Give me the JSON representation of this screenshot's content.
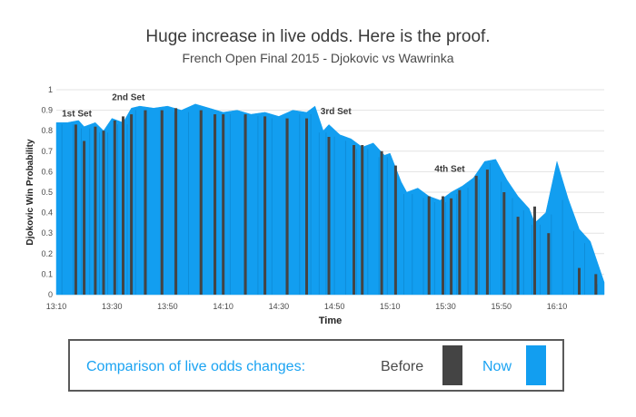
{
  "header": {
    "title": "Huge increase in live odds. Here is the proof.",
    "subtitle": "French Open Final 2015 - Djokovic vs Wawrinka"
  },
  "legend": {
    "title": "Comparison of live odds changes:",
    "before_label": "Before",
    "now_label": "Now"
  },
  "colors": {
    "now": "#129ef0",
    "before": "#444444",
    "grid": "#e3e3e3",
    "text": "#4a4a4a"
  },
  "chart_data": {
    "type": "area",
    "title": "Huge increase in live odds. Here is the proof.",
    "subtitle": "French Open Final 2015 - Djokovic vs Wawrinka",
    "xlabel": "Time",
    "ylabel": "Djokovic Win Probability",
    "ylim": [
      0,
      1
    ],
    "yticks": [
      "0",
      "0.1",
      "0.2",
      "0.3",
      "0.4",
      "0.5",
      "0.6",
      "0.7",
      "0.8",
      "0.9",
      "1"
    ],
    "xrange": [
      "13:10",
      "16:27"
    ],
    "xticks": [
      "13:10",
      "13:30",
      "13:50",
      "14:10",
      "14:30",
      "14:50",
      "15:10",
      "15:30",
      "15:50",
      "16:10"
    ],
    "grid": true,
    "annotations": [
      {
        "text": "1st Set",
        "time": "13:12",
        "value": 0.87
      },
      {
        "text": "2nd Set",
        "time": "13:30",
        "value": 0.95
      },
      {
        "text": "3rd Set",
        "time": "14:45",
        "value": 0.88
      },
      {
        "text": "4th Set",
        "time": "15:26",
        "value": 0.6
      }
    ],
    "series": [
      {
        "name": "Now",
        "times": [
          "13:10",
          "13:14",
          "13:18",
          "13:20",
          "13:24",
          "13:27",
          "13:30",
          "13:34",
          "13:37",
          "13:40",
          "13:45",
          "13:50",
          "13:55",
          "14:00",
          "14:05",
          "14:10",
          "14:15",
          "14:20",
          "14:25",
          "14:30",
          "14:35",
          "14:40",
          "14:43",
          "14:46",
          "14:48",
          "14:52",
          "14:56",
          "15:00",
          "15:04",
          "15:08",
          "15:10",
          "15:14",
          "15:16",
          "15:20",
          "15:24",
          "15:28",
          "15:32",
          "15:36",
          "15:40",
          "15:44",
          "15:48",
          "15:52",
          "15:56",
          "16:00",
          "16:02",
          "16:06",
          "16:10",
          "16:14",
          "16:18",
          "16:22",
          "16:27"
        ],
        "values": [
          0.84,
          0.84,
          0.85,
          0.82,
          0.84,
          0.8,
          0.86,
          0.84,
          0.91,
          0.92,
          0.91,
          0.92,
          0.9,
          0.93,
          0.91,
          0.89,
          0.9,
          0.88,
          0.89,
          0.87,
          0.9,
          0.89,
          0.92,
          0.8,
          0.83,
          0.78,
          0.76,
          0.72,
          0.74,
          0.68,
          0.69,
          0.55,
          0.5,
          0.52,
          0.48,
          0.46,
          0.5,
          0.53,
          0.57,
          0.65,
          0.66,
          0.56,
          0.48,
          0.42,
          0.35,
          0.4,
          0.65,
          0.47,
          0.32,
          0.26,
          0.06
        ]
      },
      {
        "name": "Before",
        "bars": [
          {
            "time": "13:17",
            "value": 0.83
          },
          {
            "time": "13:20",
            "value": 0.75
          },
          {
            "time": "13:24",
            "value": 0.82
          },
          {
            "time": "13:27",
            "value": 0.8
          },
          {
            "time": "13:31",
            "value": 0.85
          },
          {
            "time": "13:34",
            "value": 0.87
          },
          {
            "time": "13:37",
            "value": 0.88
          },
          {
            "time": "13:42",
            "value": 0.9
          },
          {
            "time": "13:48",
            "value": 0.9
          },
          {
            "time": "13:53",
            "value": 0.91
          },
          {
            "time": "14:02",
            "value": 0.9
          },
          {
            "time": "14:07",
            "value": 0.88
          },
          {
            "time": "14:10",
            "value": 0.88
          },
          {
            "time": "14:18",
            "value": 0.88
          },
          {
            "time": "14:25",
            "value": 0.87
          },
          {
            "time": "14:33",
            "value": 0.86
          },
          {
            "time": "14:40",
            "value": 0.86
          },
          {
            "time": "14:48",
            "value": 0.77
          },
          {
            "time": "14:57",
            "value": 0.73
          },
          {
            "time": "15:00",
            "value": 0.73
          },
          {
            "time": "15:07",
            "value": 0.7
          },
          {
            "time": "15:12",
            "value": 0.63
          },
          {
            "time": "15:24",
            "value": 0.48
          },
          {
            "time": "15:29",
            "value": 0.48
          },
          {
            "time": "15:32",
            "value": 0.47
          },
          {
            "time": "15:35",
            "value": 0.51
          },
          {
            "time": "15:41",
            "value": 0.58
          },
          {
            "time": "15:45",
            "value": 0.61
          },
          {
            "time": "15:51",
            "value": 0.5
          },
          {
            "time": "15:56",
            "value": 0.38
          },
          {
            "time": "16:02",
            "value": 0.43
          },
          {
            "time": "16:07",
            "value": 0.3
          },
          {
            "time": "16:18",
            "value": 0.13
          },
          {
            "time": "16:24",
            "value": 0.1
          }
        ]
      }
    ]
  }
}
